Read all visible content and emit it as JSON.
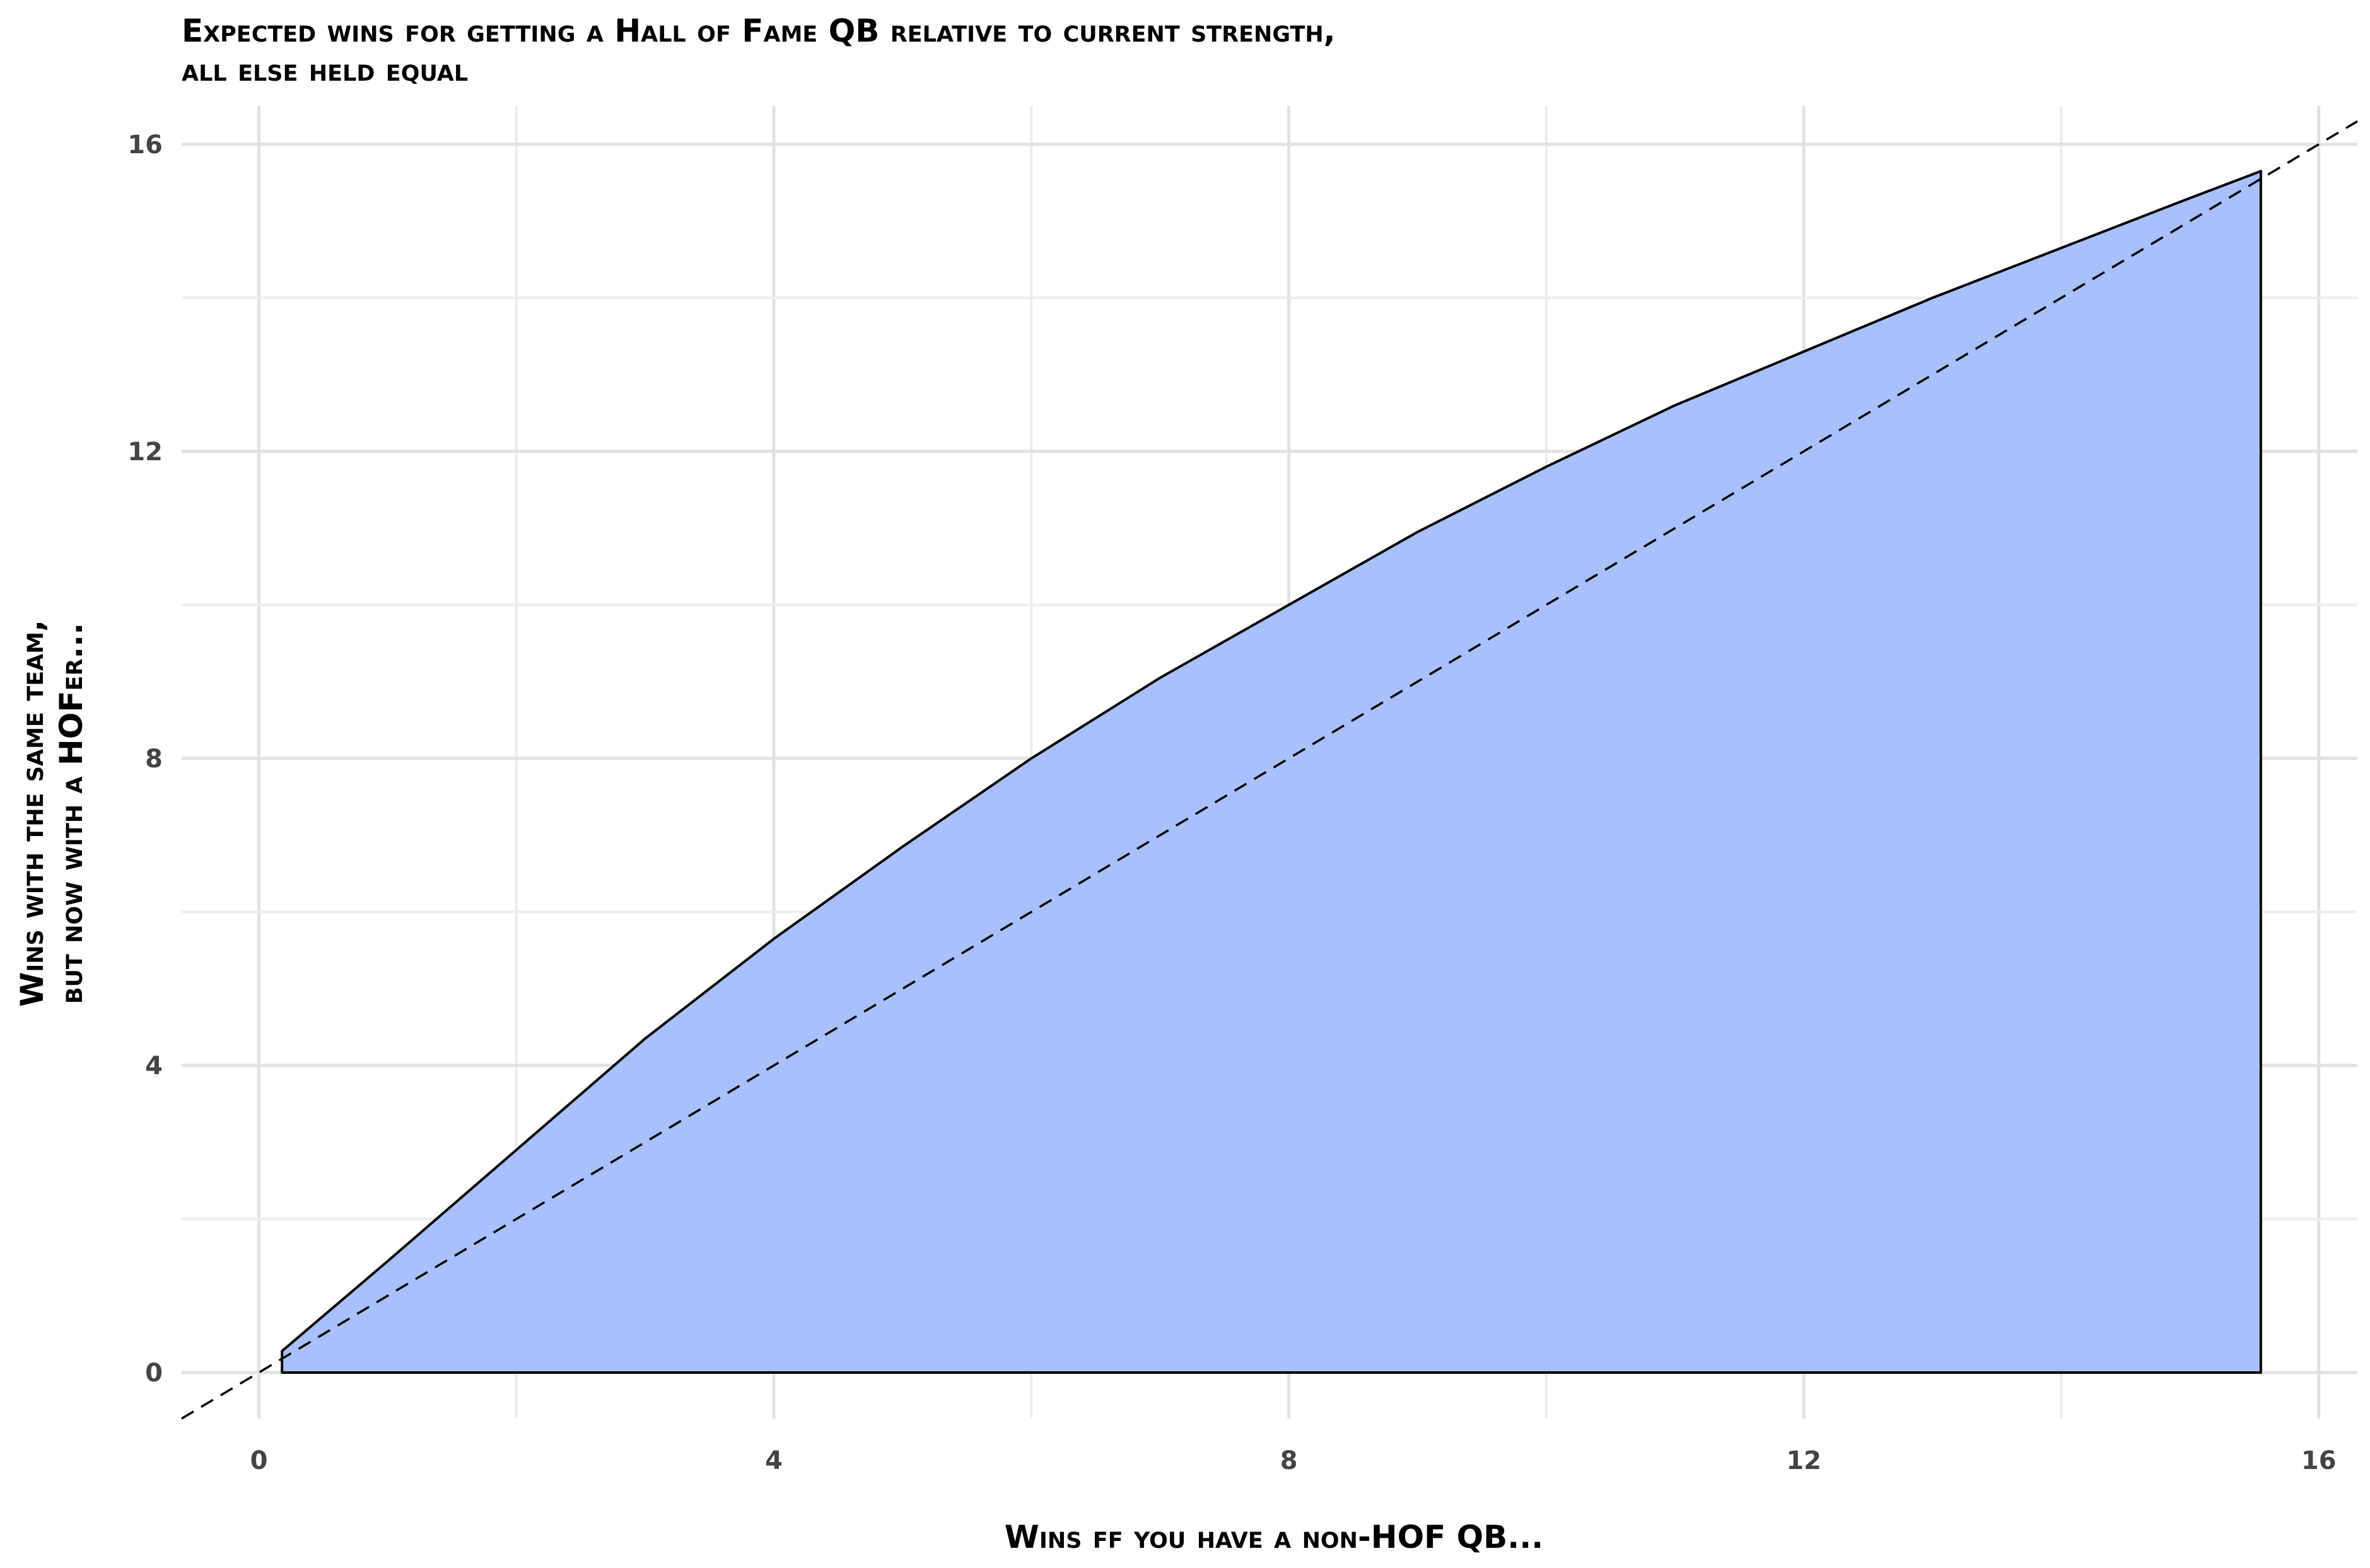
{
  "chart_data": {
    "type": "area",
    "title_lines": [
      "Expected wins for getting a Hall of Fame QB relative to current strength,",
      "all else held equal"
    ],
    "xlabel": "Wins ff you have a non-HOF QB...",
    "ylabel_lines": [
      "Wins with the same team,",
      "but now with a HOFer..."
    ],
    "xlim": [
      -0.6,
      16.3
    ],
    "ylim": [
      -0.6,
      16.5
    ],
    "x_ticks": [
      0,
      4,
      8,
      12,
      16
    ],
    "y_ticks": [
      0,
      4,
      8,
      12,
      16
    ],
    "grid": true,
    "fill_color": "#a8c1fc",
    "line_color": "#000000",
    "reference_line": {
      "slope": 1,
      "intercept": 0,
      "style": "dashed"
    },
    "series": [
      {
        "x": [
          0.18,
          1,
          2,
          3,
          4,
          5,
          6,
          7,
          8,
          9,
          10,
          11,
          12,
          13,
          14,
          15,
          15.55
        ],
        "values": [
          0.28,
          1.45,
          2.9,
          4.35,
          5.65,
          6.85,
          8.0,
          9.05,
          10.0,
          10.95,
          11.8,
          12.6,
          13.3,
          14.0,
          14.65,
          15.3,
          15.65
        ]
      }
    ]
  }
}
